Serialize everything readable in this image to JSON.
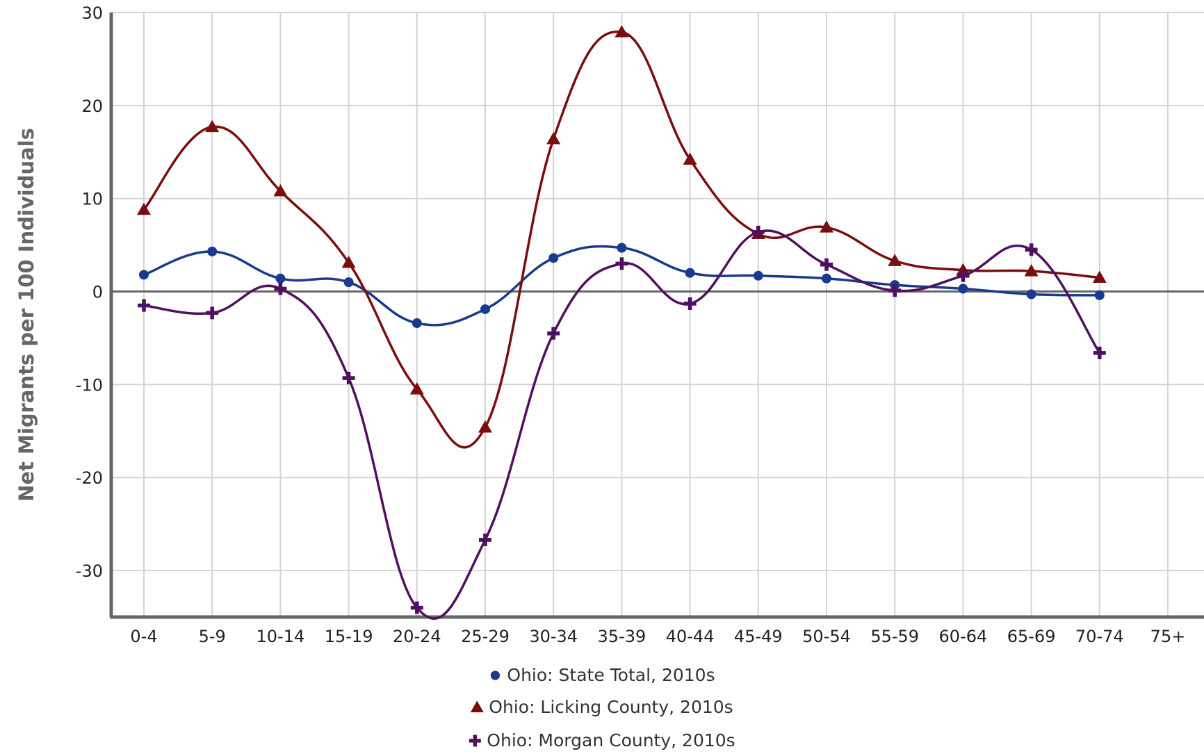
{
  "chart_data": {
    "type": "line",
    "ylabel": "Net Migrants per 100 Individuals",
    "xlabel": "",
    "categories": [
      "0-4",
      "5-9",
      "10-14",
      "15-19",
      "20-24",
      "25-29",
      "30-34",
      "35-39",
      "40-44",
      "45-49",
      "50-54",
      "55-59",
      "60-64",
      "65-69",
      "70-74",
      "75+"
    ],
    "ylim": [
      -35,
      30
    ],
    "yticks": [
      30,
      20,
      10,
      0,
      -10,
      -20,
      -30
    ],
    "ytick_labels": [
      "30",
      "20",
      "10",
      "0",
      "-10",
      "-20",
      "-30"
    ],
    "grid": true,
    "legend_position": "bottom",
    "series": [
      {
        "name": "Ohio: State Total, 2010s",
        "color": "#1a3a8f",
        "marker": "circle",
        "values": [
          1.8,
          4.3,
          1.4,
          1.0,
          -3.4,
          -1.9,
          3.6,
          4.7,
          2.0,
          1.7,
          1.4,
          0.7,
          0.3,
          -0.3,
          -0.4,
          null
        ]
      },
      {
        "name": "Ohio: Licking County, 2010s",
        "color": "#7a0d0d",
        "marker": "triangle",
        "values": [
          8.8,
          17.7,
          10.8,
          3.1,
          -10.5,
          -14.6,
          16.4,
          27.9,
          14.2,
          6.2,
          6.9,
          3.3,
          2.3,
          2.2,
          1.5,
          null
        ]
      },
      {
        "name": "Ohio: Morgan County, 2010s",
        "color": "#4f1060",
        "marker": "plus",
        "values": [
          -1.5,
          -2.3,
          0.3,
          -9.3,
          -34.0,
          -26.7,
          -4.5,
          3.0,
          -1.3,
          6.4,
          2.9,
          0.1,
          1.7,
          4.5,
          -6.6,
          null
        ]
      }
    ]
  }
}
